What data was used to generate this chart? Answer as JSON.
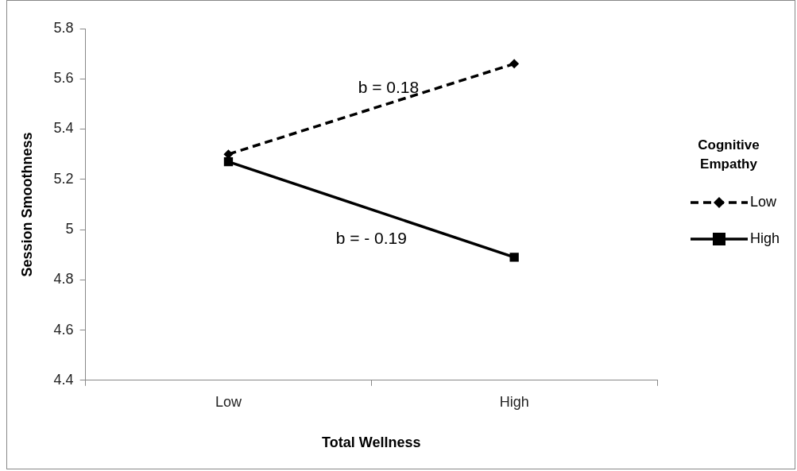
{
  "chart_data": {
    "type": "line",
    "xlabel": "Total Wellness",
    "ylabel": "Session Smoothness",
    "legend_title": "Cognitive Empathy",
    "categories": [
      "Low",
      "High"
    ],
    "series": [
      {
        "name": "Low",
        "color": "#000000",
        "values": [
          5.3,
          5.66
        ],
        "line_style": "dashed",
        "marker": "diamond"
      },
      {
        "name": "High",
        "color": "#000000",
        "values": [
          5.27,
          4.89
        ],
        "line_style": "solid",
        "marker": "square"
      }
    ],
    "ylim": [
      4.4,
      5.8
    ],
    "yticks": [
      4.4,
      4.6,
      4.8,
      5,
      5.2,
      5.4,
      5.6,
      5.8
    ],
    "legend": "right",
    "grid": false,
    "annotations": [
      "b = 0.18",
      "b = - 0.19"
    ]
  }
}
